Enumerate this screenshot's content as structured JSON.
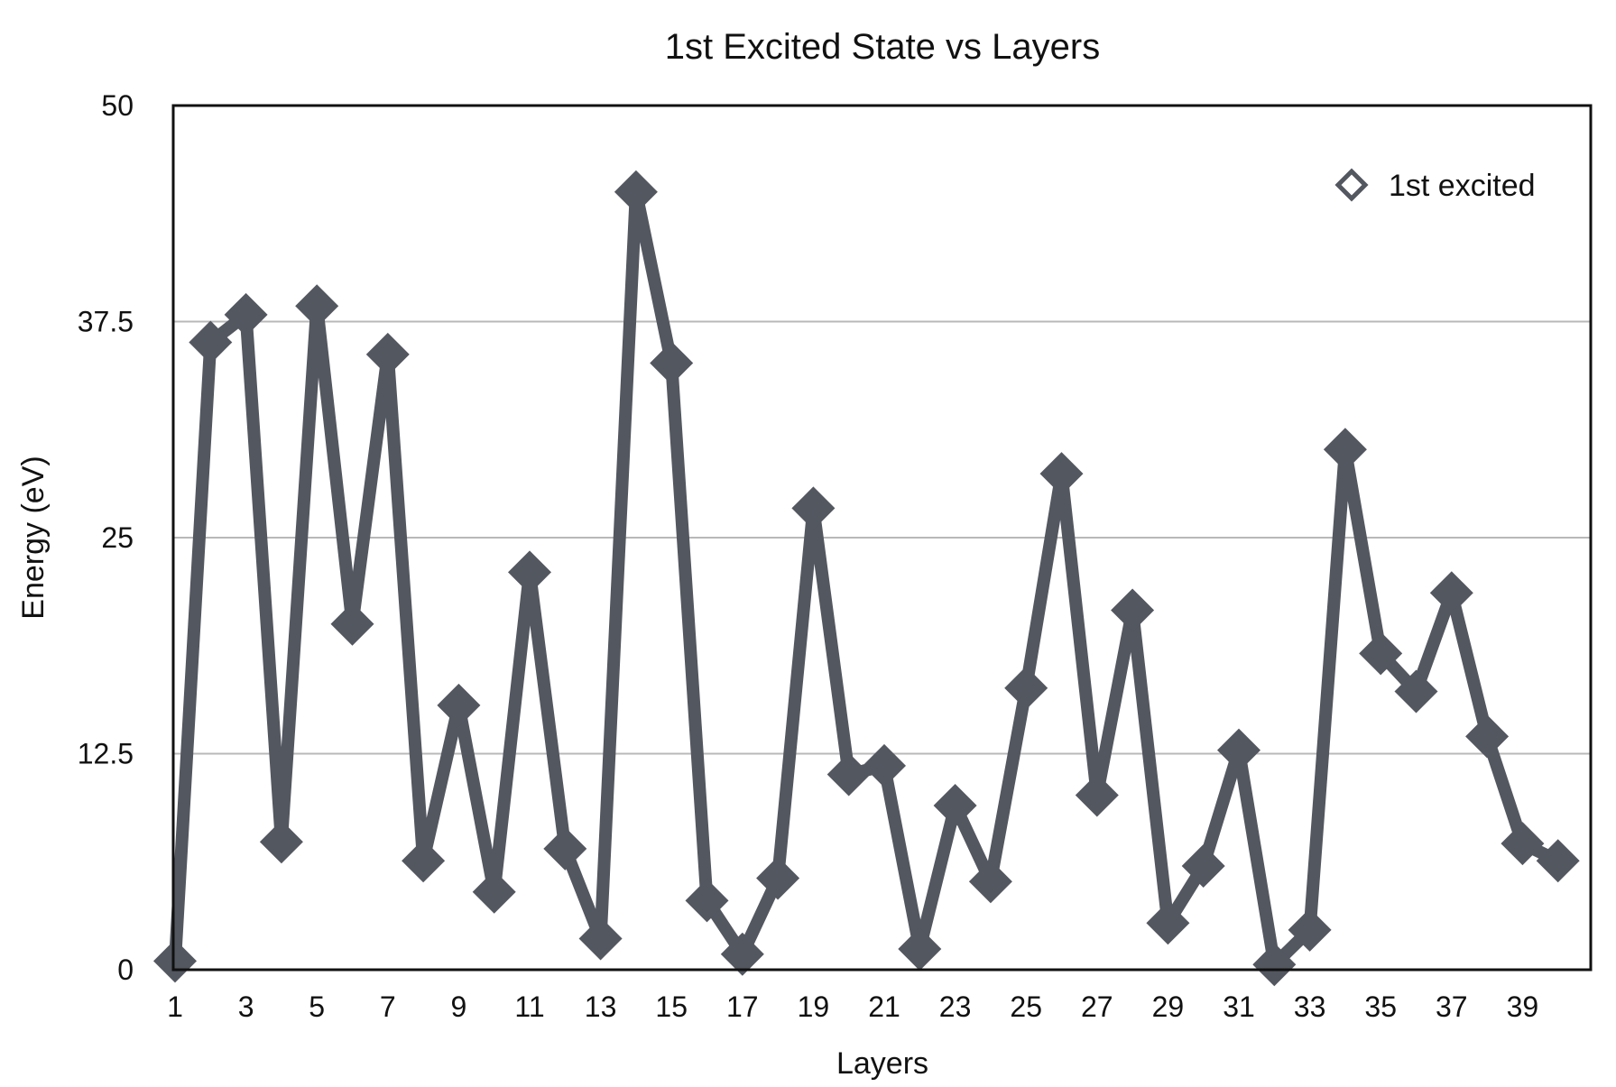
{
  "chart_data": {
    "type": "line",
    "title": "1st Excited State vs Layers",
    "xlabel": "Layers",
    "ylabel": "Energy (eV)",
    "ylim": [
      0,
      50
    ],
    "yticks": [
      "0",
      "12.5",
      "25",
      "37.5",
      "50"
    ],
    "y_tick_values": [
      0,
      12.5,
      25,
      37.5,
      50
    ],
    "x": [
      1,
      2,
      3,
      4,
      5,
      6,
      7,
      8,
      9,
      10,
      11,
      12,
      13,
      14,
      15,
      16,
      17,
      18,
      19,
      20,
      21,
      22,
      23,
      24,
      25,
      26,
      27,
      28,
      29,
      30,
      31,
      32,
      33,
      34,
      35,
      36,
      37,
      38,
      39,
      40
    ],
    "x_tick_values": [
      1,
      3,
      5,
      7,
      9,
      11,
      13,
      15,
      17,
      19,
      21,
      23,
      25,
      27,
      29,
      31,
      33,
      35,
      37,
      39
    ],
    "x_tick_labels": [
      "1",
      "3",
      "5",
      "7",
      "9",
      "11",
      "13",
      "15",
      "17",
      "19",
      "21",
      "23",
      "25",
      "27",
      "29",
      "31",
      "33",
      "35",
      "37",
      "39"
    ],
    "series": [
      {
        "name": "1st excited",
        "values": [
          0.5,
          36.3,
          37.9,
          7.4,
          38.4,
          20.0,
          35.6,
          6.3,
          15.3,
          4.5,
          23.0,
          7.0,
          1.8,
          45.0,
          35.1,
          4.0,
          0.9,
          5.3,
          26.7,
          11.3,
          11.8,
          1.2,
          9.5,
          5.1,
          16.3,
          28.7,
          10.1,
          20.8,
          2.7,
          6.0,
          12.7,
          0.3,
          2.3,
          30.1,
          18.3,
          16.1,
          21.8,
          13.5,
          7.3,
          6.3
        ],
        "color": "#535760",
        "marker": "diamond"
      }
    ],
    "grid": "horizontal",
    "legend_position": "top-right"
  }
}
